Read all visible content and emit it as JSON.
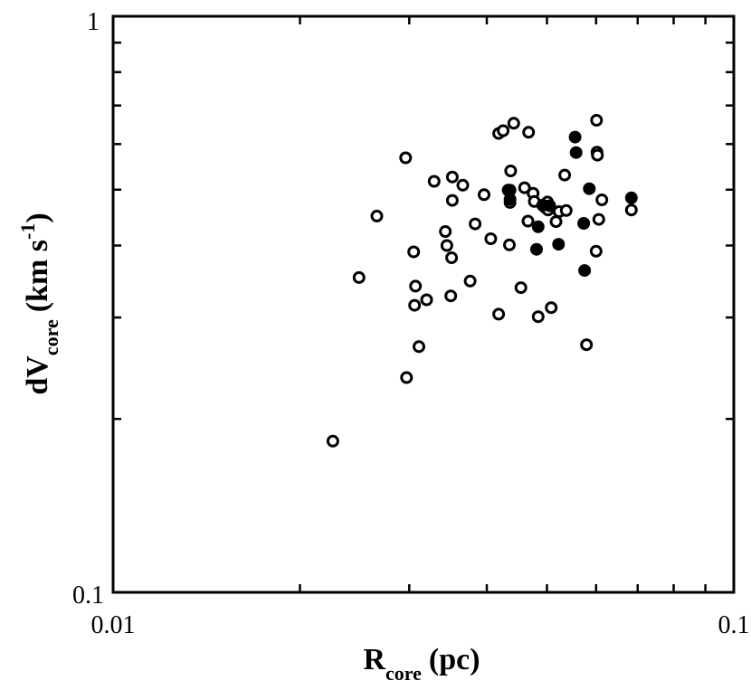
{
  "chart_data": {
    "type": "scatter",
    "xscale": "log",
    "yscale": "log",
    "xlim": [
      0.01,
      0.1
    ],
    "ylim": [
      0.1,
      1
    ],
    "x_tick_labels": [
      "0.01",
      "0.1"
    ],
    "y_tick_labels": [
      "0.1",
      "1"
    ],
    "xlabel": {
      "main": "R",
      "sub": "core",
      "unit": "(pc)"
    },
    "ylabel": {
      "main": "dV",
      "sub": "core",
      "unit": "(km s",
      "sup": "-1",
      "close": ")"
    },
    "grid": false,
    "series": [
      {
        "marker": "open-circle",
        "points": [
          [
            0.0226,
            0.183
          ],
          [
            0.0249,
            0.352
          ],
          [
            0.0266,
            0.45
          ],
          [
            0.0296,
            0.568
          ],
          [
            0.0297,
            0.236
          ],
          [
            0.0305,
            0.39
          ],
          [
            0.0306,
            0.315
          ],
          [
            0.0307,
            0.34
          ],
          [
            0.0311,
            0.267
          ],
          [
            0.032,
            0.322
          ],
          [
            0.0329,
            0.517
          ],
          [
            0.0343,
            0.423
          ],
          [
            0.0345,
            0.4
          ],
          [
            0.035,
            0.327
          ],
          [
            0.0351,
            0.381
          ],
          [
            0.0352,
            0.526
          ],
          [
            0.0352,
            0.479
          ],
          [
            0.0366,
            0.509
          ],
          [
            0.0376,
            0.347
          ],
          [
            0.0383,
            0.436
          ],
          [
            0.0396,
            0.49
          ],
          [
            0.0406,
            0.411
          ],
          [
            0.0418,
            0.626
          ],
          [
            0.0418,
            0.304
          ],
          [
            0.0425,
            0.633
          ],
          [
            0.0435,
            0.401
          ],
          [
            0.0436,
            0.499
          ],
          [
            0.0436,
            0.475
          ],
          [
            0.0437,
            0.539
          ],
          [
            0.0442,
            0.652
          ],
          [
            0.0454,
            0.338
          ],
          [
            0.046,
            0.504
          ],
          [
            0.0466,
            0.441
          ],
          [
            0.0467,
            0.629
          ],
          [
            0.0475,
            0.493
          ],
          [
            0.0477,
            0.477
          ],
          [
            0.0484,
            0.301
          ],
          [
            0.0496,
            0.466
          ],
          [
            0.0501,
            0.476
          ],
          [
            0.0502,
            0.461
          ],
          [
            0.0508,
            0.312
          ],
          [
            0.0517,
            0.44
          ],
          [
            0.0523,
            0.458
          ],
          [
            0.0534,
            0.53
          ],
          [
            0.0537,
            0.46
          ],
          [
            0.0579,
            0.269
          ],
          [
            0.06,
            0.391
          ],
          [
            0.0601,
            0.66
          ],
          [
            0.0602,
            0.581
          ],
          [
            0.0603,
            0.574
          ],
          [
            0.0606,
            0.444
          ],
          [
            0.0613,
            0.48
          ],
          [
            0.0684,
            0.461
          ]
        ]
      },
      {
        "marker": "filled-circle",
        "points": [
          [
            0.0433,
            0.499
          ],
          [
            0.0436,
            0.481
          ],
          [
            0.0481,
            0.394
          ],
          [
            0.0484,
            0.431
          ],
          [
            0.0492,
            0.47
          ],
          [
            0.0505,
            0.469
          ],
          [
            0.0522,
            0.402
          ],
          [
            0.0555,
            0.617
          ],
          [
            0.0557,
            0.58
          ],
          [
            0.0573,
            0.437
          ],
          [
            0.0575,
            0.362
          ],
          [
            0.0585,
            0.502
          ],
          [
            0.0684,
            0.484
          ]
        ]
      }
    ]
  }
}
